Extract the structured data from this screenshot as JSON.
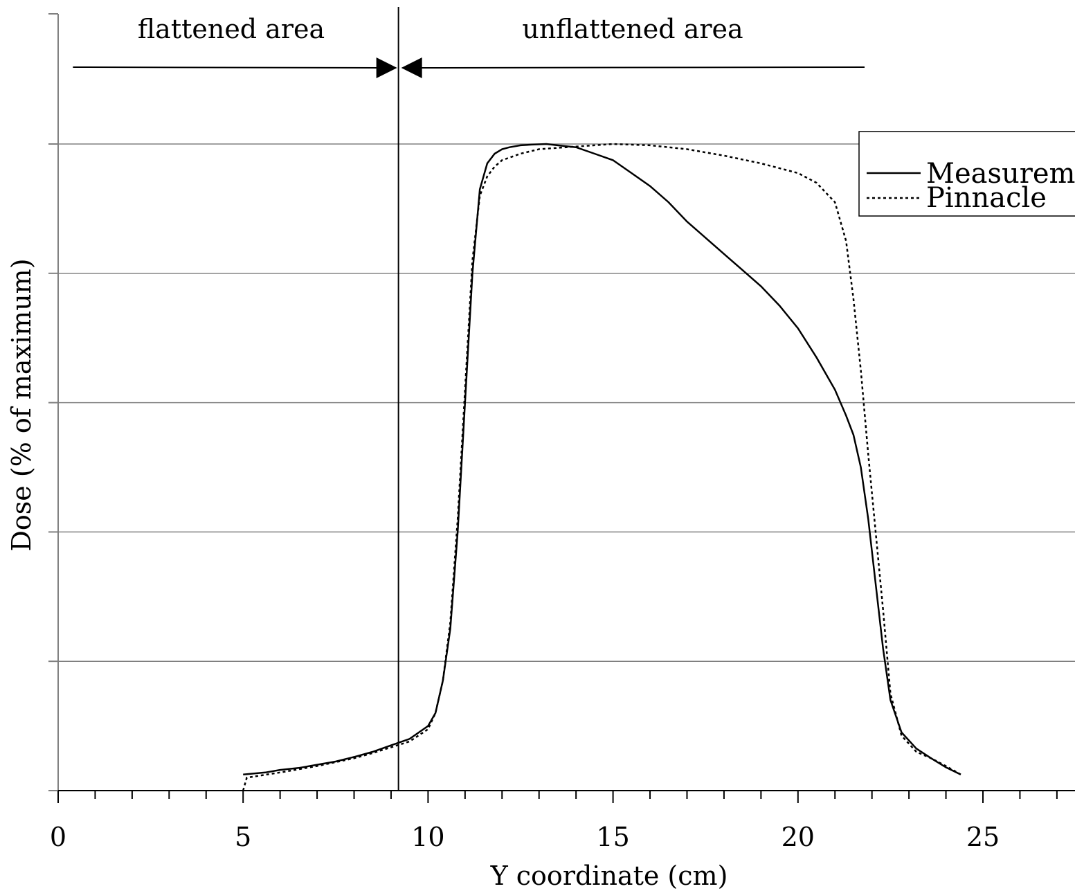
{
  "chart_data": {
    "type": "line",
    "title": "",
    "xlabel": "Y coordinate (cm)",
    "ylabel": "Dose (% of  maximum)",
    "xlim": [
      0,
      27.5
    ],
    "ylim": [
      0,
      100
    ],
    "x_ticks": [
      0,
      5,
      10,
      15,
      20,
      25
    ],
    "x_tick_labels": [
      "0",
      "5",
      "10",
      "15",
      "20",
      "25"
    ],
    "y_ticks": [
      0,
      20,
      40,
      60,
      80,
      100
    ],
    "y_tick_labels_visible": false,
    "grid": "horizontal",
    "legend": {
      "position": "right",
      "entries": [
        "Measurem",
        "Pinnacle"
      ]
    },
    "annotations": [
      {
        "text": "flattened area",
        "x_from": 0.4,
        "x_to": 9.2
      },
      {
        "text": "unflattened area",
        "x_from": 9.2,
        "x_to": 21.8
      }
    ],
    "divider_x": 9.2,
    "series": [
      {
        "name": "Measurem",
        "style": "solid",
        "x": [
          5,
          5.6,
          6,
          6.5,
          7,
          7.5,
          8,
          8.5,
          9,
          9.5,
          10,
          10.2,
          10.4,
          10.6,
          10.8,
          11,
          11.2,
          11.4,
          11.6,
          11.8,
          12,
          12.2,
          12.5,
          12.8,
          13.2,
          13.5,
          14,
          14.5,
          15,
          15.5,
          16,
          16.5,
          17,
          17.5,
          18,
          18.5,
          19,
          19.5,
          20,
          20.5,
          21,
          21.3,
          21.5,
          21.7,
          21.9,
          22.1,
          22.3,
          22.5,
          22.8,
          23.2,
          23.6,
          24,
          24.4
        ],
        "y": [
          2.5,
          2.8,
          3.2,
          3.5,
          4,
          4.5,
          5.2,
          6,
          7,
          8,
          10,
          12,
          17,
          25,
          40,
          60,
          80,
          93,
          97,
          98.5,
          99.2,
          99.5,
          99.8,
          99.9,
          100,
          99.8,
          99.5,
          98.5,
          97.5,
          95.5,
          93.5,
          91,
          88,
          85.5,
          83,
          80.5,
          78,
          75,
          71.5,
          67,
          62,
          58,
          55,
          50,
          42,
          32,
          22,
          14,
          9,
          6.5,
          5,
          3.6,
          2.5
        ],
        "y_unit": "% of plotted range"
      },
      {
        "name": "Pinnacle",
        "style": "dotted",
        "x": [
          5,
          5.1,
          6,
          6.5,
          7,
          7.5,
          8,
          8.5,
          9,
          9.5,
          10,
          10.2,
          10.4,
          10.6,
          10.8,
          11,
          11.2,
          11.4,
          11.6,
          11.8,
          12,
          12.5,
          13,
          14,
          15,
          16,
          17,
          18,
          19,
          20,
          20.5,
          21,
          21.3,
          21.5,
          21.7,
          21.9,
          22.1,
          22.3,
          22.5,
          22.8,
          23.2,
          23.6,
          24,
          24.4
        ],
        "y": [
          0,
          2,
          2.8,
          3.3,
          3.8,
          4.4,
          5,
          5.8,
          6.7,
          7.6,
          9.5,
          12,
          17,
          26,
          42,
          62,
          82,
          92,
          95,
          96.5,
          97.5,
          98.5,
          99.2,
          99.6,
          100,
          99.8,
          99.2,
          98.2,
          97,
          95.5,
          94,
          91,
          85,
          76,
          65,
          52,
          40,
          28,
          15,
          8.5,
          6,
          5,
          3.8,
          2.5
        ],
        "y_unit": "% of plotted range"
      }
    ]
  }
}
